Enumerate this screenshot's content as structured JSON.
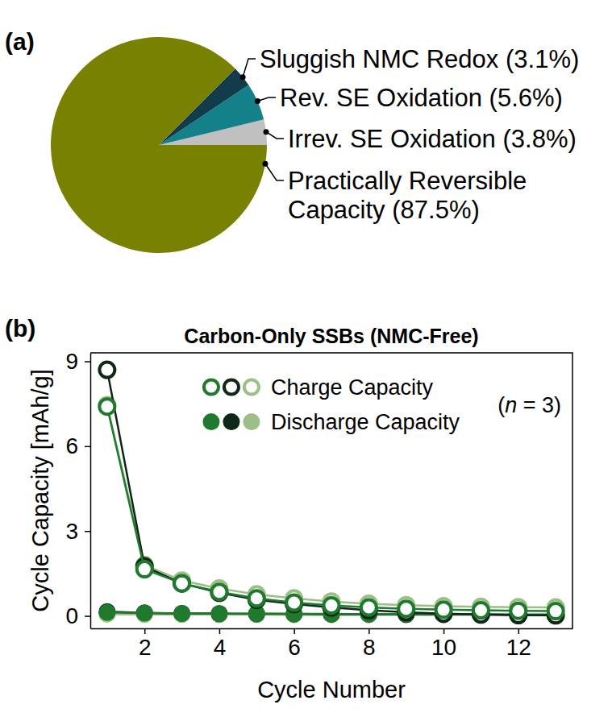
{
  "chart_data": [
    {
      "type": "pie",
      "annotations": [
        "(a)"
      ],
      "categories": [
        "Irrev. SE Oxidation",
        "Rev. SE Oxidation",
        "Sluggish NMC Redox",
        "Practically Reversible Capacity"
      ],
      "values": [
        3.8,
        5.6,
        3.1,
        87.5
      ],
      "value_labels": [
        "(3.8%)",
        "(5.6%)",
        "(3.1%)",
        "(87.5%)"
      ],
      "colors": [
        "#c0c0c0",
        "#14808a",
        "#123c4c",
        "#798200"
      ],
      "data_labels": true
    },
    {
      "type": "line",
      "title": "Carbon-Only SSBs (NMC-Free)",
      "annotations": [
        "(b)",
        "(n = 3)"
      ],
      "x_label": "Cycle Number",
      "y_label": "Cycle Capacity [mAh/g]",
      "x": [
        1,
        2,
        3,
        4,
        5,
        6,
        7,
        8,
        9,
        10,
        11,
        12,
        13
      ],
      "xlim": [
        0.55,
        13.45
      ],
      "ylim": [
        -0.44,
        9.3
      ],
      "xticks": [
        2,
        4,
        6,
        8,
        10,
        12
      ],
      "yticks": [
        0,
        3,
        6,
        9
      ],
      "grid": false,
      "legend": "upper center",
      "series": [
        {
          "name": "Charge Capacity",
          "color": "#1f7a2e",
          "marker": "open-circle",
          "values": [
            7.4,
            1.65,
            1.15,
            0.85,
            0.62,
            0.47,
            0.37,
            0.3,
            0.25,
            0.22,
            0.2,
            0.18,
            0.17
          ]
        },
        {
          "name": "Charge Capacity",
          "color": "#0f2717",
          "marker": "open-circle",
          "values": [
            8.7,
            1.75,
            1.15,
            0.82,
            0.57,
            0.42,
            0.3,
            0.2,
            0.13,
            0.08,
            0.05,
            0.03,
            0.02
          ]
        },
        {
          "name": "Charge Capacity",
          "color": "#9dbf87",
          "marker": "open-circle",
          "values": [
            7.45,
            1.8,
            1.25,
            0.97,
            0.76,
            0.62,
            0.51,
            0.43,
            0.38,
            0.34,
            0.32,
            0.31,
            0.3
          ]
        },
        {
          "name": "Discharge Capacity",
          "color": "#1f7a2e",
          "marker": "filled-circle",
          "values": [
            0.12,
            0.1,
            0.09,
            0.08,
            0.08,
            0.07,
            0.07,
            0.06,
            0.06,
            0.06,
            0.05,
            0.05,
            0.05
          ]
        },
        {
          "name": "Discharge Capacity",
          "color": "#0f2717",
          "marker": "filled-circle",
          "values": [
            0.15,
            0.11,
            0.09,
            0.08,
            0.07,
            0.07,
            0.06,
            0.06,
            0.05,
            0.05,
            0.05,
            0.04,
            0.04
          ]
        },
        {
          "name": "Discharge Capacity",
          "color": "#9dbf87",
          "marker": "filled-circle",
          "values": [
            0.06,
            0.05,
            0.05,
            0.05,
            0.05,
            0.04,
            0.04,
            0.04,
            0.04,
            0.04,
            0.04,
            0.04,
            0.04
          ]
        }
      ]
    }
  ]
}
